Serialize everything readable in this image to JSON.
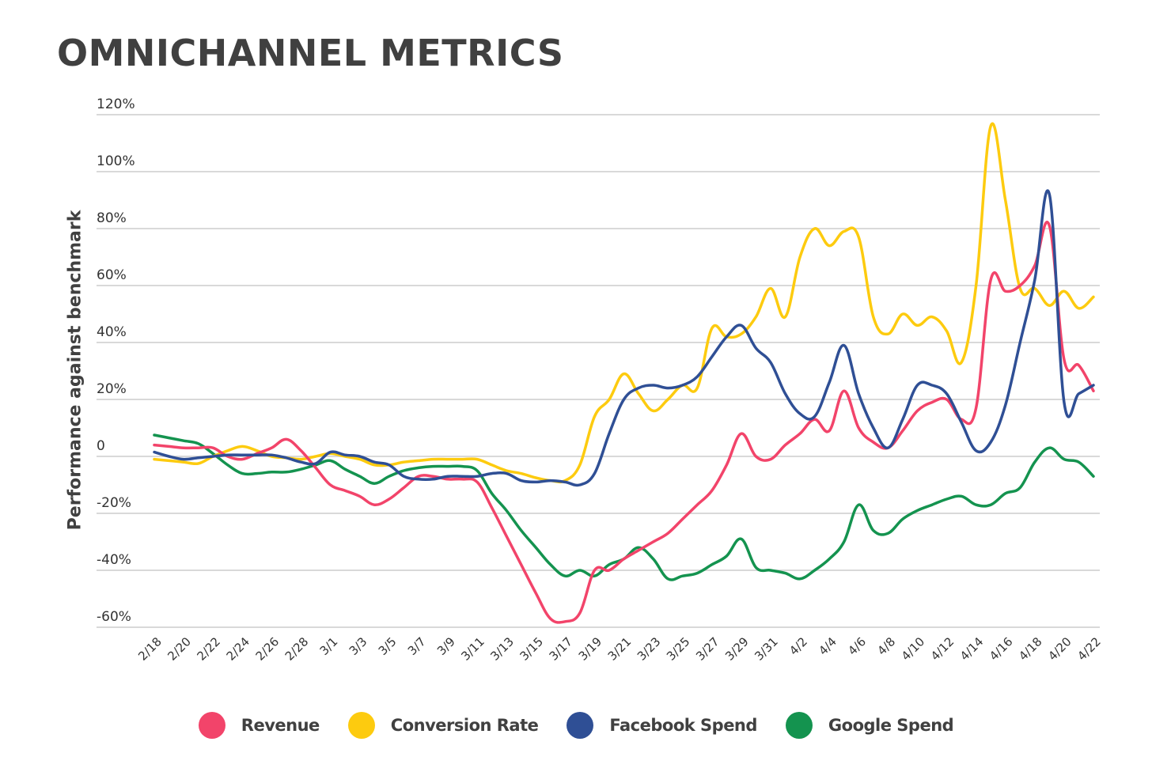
{
  "chart_data": {
    "type": "line",
    "title": "OMNICHANNEL METRICS",
    "xlabel": "",
    "ylabel": "Performance against benchmark",
    "ylim": [
      -60,
      120
    ],
    "yticks": [
      -60,
      -40,
      -20,
      0,
      20,
      40,
      60,
      80,
      100,
      120
    ],
    "ytick_labels": [
      "-60%",
      "-40%",
      "-20%",
      "0",
      "20%",
      "40%",
      "60%",
      "80%",
      "100%",
      "120%"
    ],
    "grid": true,
    "legend_position": "bottom",
    "x": [
      "2/18",
      "2/19",
      "2/20",
      "2/21",
      "2/22",
      "2/23",
      "2/24",
      "2/25",
      "2/26",
      "2/27",
      "2/28",
      "2/29",
      "3/1",
      "3/2",
      "3/3",
      "3/4",
      "3/5",
      "3/6",
      "3/7",
      "3/8",
      "3/9",
      "3/10",
      "3/11",
      "3/12",
      "3/13",
      "3/14",
      "3/15",
      "3/16",
      "3/17",
      "3/18",
      "3/19",
      "3/20",
      "3/21",
      "3/22",
      "3/23",
      "3/24",
      "3/25",
      "3/26",
      "3/27",
      "3/28",
      "3/29",
      "3/30",
      "3/31",
      "4/1",
      "4/2",
      "4/3",
      "4/4",
      "4/5",
      "4/6",
      "4/7",
      "4/8",
      "4/9",
      "4/10",
      "4/11",
      "4/12",
      "4/13",
      "4/14",
      "4/15",
      "4/16",
      "4/17",
      "4/18",
      "4/19",
      "4/20",
      "4/21",
      "4/22"
    ],
    "xtick_labels": [
      "2/18",
      "2/20",
      "2/22",
      "2/24",
      "2/26",
      "2/28",
      "3/1",
      "3/3",
      "3/5",
      "3/7",
      "3/9",
      "3/11",
      "3/13",
      "3/15",
      "3/17",
      "3/19",
      "3/21",
      "3/23",
      "3/25",
      "3/27",
      "3/29",
      "3/31",
      "4/2",
      "4/4",
      "4/6",
      "4/8",
      "4/10",
      "4/12",
      "4/14",
      "4/16",
      "4/18",
      "4/20",
      "4/22"
    ],
    "series": [
      {
        "name": "Revenue",
        "color": "#f2446a",
        "values": [
          4,
          3.5,
          3,
          3,
          3,
          0,
          -1,
          1,
          3,
          6,
          2,
          -4,
          -10,
          -12,
          -14,
          -17,
          -15,
          -11,
          -7,
          -7,
          -8,
          -8,
          -9,
          -18,
          -28,
          -38,
          -48,
          -57,
          -58,
          -55,
          -40,
          -40,
          -36,
          -33,
          -30,
          -27,
          -22,
          -17,
          -12,
          -3,
          8,
          0,
          -1,
          4,
          8,
          13,
          9,
          23,
          10,
          5,
          3,
          9,
          16,
          19,
          20,
          13,
          17,
          62,
          58,
          60,
          67,
          81,
          34,
          32,
          23
        ]
      },
      {
        "name": "Conversion Rate",
        "color": "#fdcb0f",
        "values": [
          -1,
          -1.5,
          -2,
          -2.5,
          0,
          2,
          3.5,
          2,
          0,
          -0.5,
          -1,
          0,
          1,
          0,
          -1,
          -3,
          -3,
          -2,
          -1.5,
          -1,
          -1,
          -1,
          -1,
          -3,
          -5,
          -6,
          -7.5,
          -8.5,
          -8.5,
          -3,
          14,
          20,
          29,
          22,
          16,
          20,
          25,
          24,
          45,
          42,
          43,
          49,
          59,
          49,
          70,
          80,
          74,
          79,
          77,
          49,
          43,
          50,
          46,
          49,
          44,
          33,
          60,
          116,
          90,
          59,
          59,
          53,
          58,
          52,
          56
        ]
      },
      {
        "name": "Facebook Spend",
        "color": "#2f4f95",
        "values": [
          1.5,
          0,
          -1,
          -0.5,
          0,
          0.5,
          0.5,
          0.5,
          0.5,
          -0.5,
          -2,
          -2.5,
          1.5,
          0.5,
          0,
          -2,
          -3,
          -7,
          -8,
          -8,
          -7,
          -7,
          -7,
          -6,
          -6,
          -8.5,
          -9,
          -8.5,
          -9,
          -10,
          -6,
          8,
          20,
          24,
          25,
          24,
          25,
          28,
          35,
          42,
          46,
          38,
          33,
          22,
          15,
          14,
          26,
          39,
          22,
          10,
          3,
          13,
          25,
          25,
          22,
          12,
          2,
          5,
          18,
          40,
          62,
          92,
          19,
          22,
          25
        ]
      },
      {
        "name": "Google Spend",
        "color": "#14934f",
        "values": [
          7.5,
          6.5,
          5.5,
          4.5,
          1,
          -3,
          -6,
          -6,
          -5.5,
          -5.5,
          -4.5,
          -3,
          -1.5,
          -4.5,
          -7,
          -9.5,
          -7,
          -5,
          -4,
          -3.5,
          -3.5,
          -3.5,
          -5,
          -13,
          -19,
          -26,
          -32,
          -38,
          -42,
          -40,
          -42,
          -38,
          -36,
          -32,
          -36,
          -43,
          -42,
          -41,
          -38,
          -35,
          -29,
          -39,
          -40,
          -41,
          -43,
          -40,
          -36,
          -30,
          -17,
          -26,
          -27,
          -22,
          -19,
          -17,
          -15,
          -14,
          -17,
          -17,
          -13,
          -11,
          -2,
          3,
          -1,
          -2,
          -7
        ]
      }
    ]
  },
  "legend": {
    "items": [
      {
        "label": "Revenue",
        "color": "#f2446a"
      },
      {
        "label": "Conversion Rate",
        "color": "#fdcb0f"
      },
      {
        "label": "Facebook Spend",
        "color": "#2f4f95"
      },
      {
        "label": "Google Spend",
        "color": "#14934f"
      }
    ]
  }
}
